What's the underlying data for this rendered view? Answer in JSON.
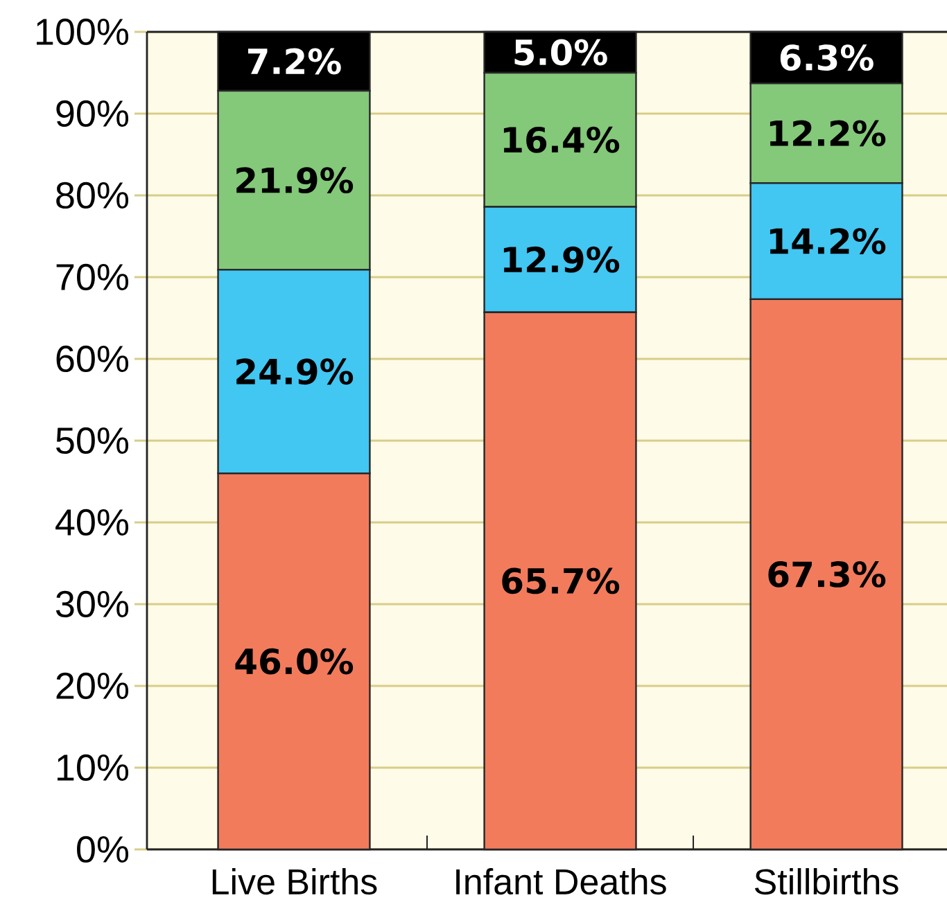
{
  "chart_data": {
    "type": "bar",
    "stacked": true,
    "categories": [
      "Live Births",
      "Infant Deaths",
      "Stillbirths"
    ],
    "series": [
      {
        "color": "#f27b5c",
        "values": [
          46.0,
          65.7,
          67.3
        ],
        "value_labels": [
          "46.0%",
          "65.7%",
          "67.3%"
        ]
      },
      {
        "color": "#42c6f2",
        "values": [
          24.9,
          12.9,
          14.2
        ],
        "value_labels": [
          "24.9%",
          "12.9%",
          "14.2%"
        ]
      },
      {
        "color": "#84c87a",
        "values": [
          21.9,
          16.4,
          12.2
        ],
        "value_labels": [
          "21.9%",
          "16.4%",
          "12.2%"
        ]
      },
      {
        "color": "#000000",
        "values": [
          7.2,
          5.0,
          6.3
        ],
        "value_labels": [
          "7.2%",
          "5.0%",
          "6.3%"
        ]
      }
    ],
    "ylim": [
      0,
      100
    ],
    "yticks": [
      {
        "value": 0,
        "label": "0%"
      },
      {
        "value": 10,
        "label": "10%"
      },
      {
        "value": 20,
        "label": "20%"
      },
      {
        "value": 30,
        "label": "30%"
      },
      {
        "value": 40,
        "label": "40%"
      },
      {
        "value": 50,
        "label": "50%"
      },
      {
        "value": 60,
        "label": "60%"
      },
      {
        "value": 70,
        "label": "70%"
      },
      {
        "value": 80,
        "label": "80%"
      },
      {
        "value": 90,
        "label": "90%"
      },
      {
        "value": 100,
        "label": "100%"
      }
    ],
    "grid": "y"
  }
}
